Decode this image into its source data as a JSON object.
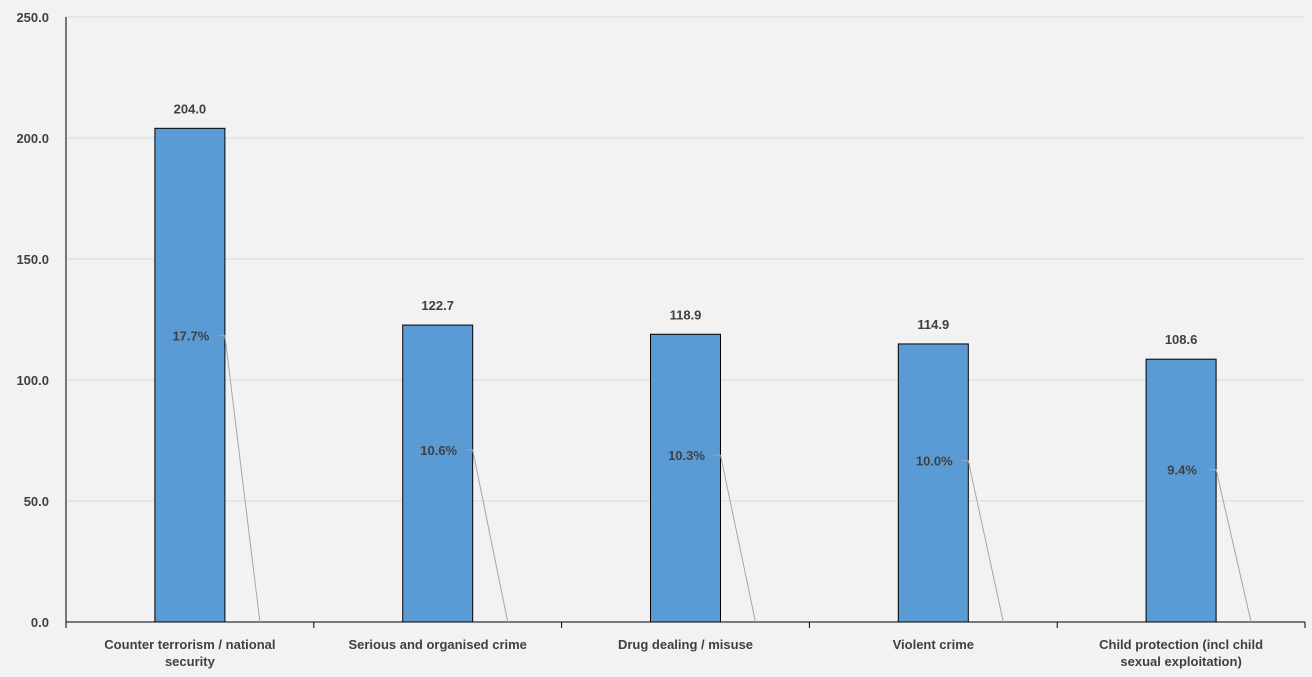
{
  "chart_data": {
    "type": "bar",
    "categories": [
      "Counter terrorism / national security",
      "Serious and organised crime",
      "Drug dealing / misuse",
      "Violent crime",
      "Child protection (incl child sexual exploitation)"
    ],
    "category_lines": [
      [
        "Counter terrorism / national",
        "security"
      ],
      [
        "Serious and organised crime"
      ],
      [
        "Drug dealing / misuse"
      ],
      [
        "Violent crime"
      ],
      [
        "Child protection (incl child",
        "sexual exploitation)"
      ]
    ],
    "values": [
      204.0,
      122.7,
      118.9,
      114.9,
      108.6
    ],
    "value_labels": [
      "204.0",
      "122.7",
      "118.9",
      "114.9",
      "108.6"
    ],
    "percent_labels": [
      "17.7%",
      "10.6%",
      "10.3%",
      "10.0%",
      "9.4%"
    ],
    "yticks": [
      "0.0",
      "50.0",
      "100.0",
      "150.0",
      "200.0",
      "250.0"
    ],
    "ylim": [
      0,
      250
    ],
    "grid": true,
    "legend": "none",
    "colors": {
      "bar": "#5b9bd5",
      "bar_border": "#000000",
      "grid": "#d9d9d9",
      "leader": "#a6a6a6",
      "background": "#f2f2f2"
    }
  }
}
